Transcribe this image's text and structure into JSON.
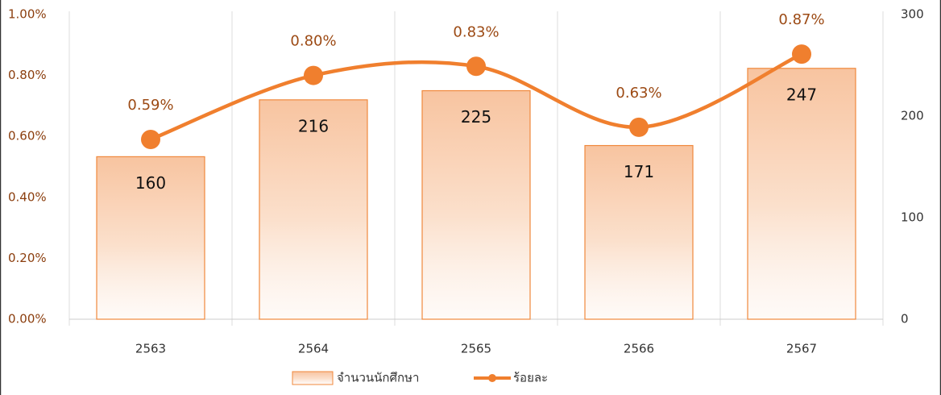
{
  "chart_data": {
    "type": "bar+line",
    "categories": [
      "2563",
      "2564",
      "2565",
      "2566",
      "2567"
    ],
    "series": [
      {
        "name": "จำนวนนักศึกษา",
        "type": "bar",
        "axis": "y2",
        "color": "#f0883c",
        "values": [
          160,
          216,
          225,
          171,
          247
        ]
      },
      {
        "name": "ร้อยละ",
        "type": "line",
        "color": "#f07f2e",
        "values": [
          0.59,
          0.8,
          0.83,
          0.63,
          0.87
        ],
        "value_labels": [
          "0.59%",
          "0.80%",
          "0.83%",
          "0.63%",
          "0.87%"
        ]
      }
    ],
    "ylim": [
      0,
      1.0
    ],
    "yticks": [
      {
        "value": 0,
        "label": "0.00%"
      },
      {
        "value": 0.2,
        "label": "0.20%"
      },
      {
        "value": 0.4,
        "label": "0.40%"
      },
      {
        "value": 0.6,
        "label": "0.60%"
      },
      {
        "value": 0.8,
        "label": "0.80%"
      },
      {
        "value": 1.0,
        "label": "1.00%"
      }
    ],
    "y2lim": [
      0,
      300
    ],
    "y2ticks": [
      0,
      100,
      200,
      300
    ],
    "legend": "bottom"
  }
}
